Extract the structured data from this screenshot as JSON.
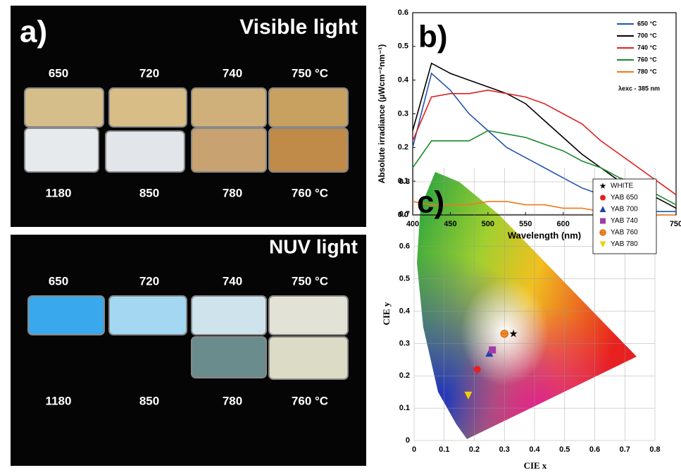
{
  "panel_a": {
    "label": "a)",
    "visible": {
      "title": "Visible light",
      "top_labels": [
        "650",
        "720",
        "740",
        "750 °C"
      ],
      "bottom_labels": [
        "1180",
        "850",
        "780",
        "760 °C"
      ]
    },
    "nuv": {
      "title": "NUV light",
      "top_labels": [
        "650",
        "720",
        "740",
        "750 °C"
      ],
      "bottom_labels": [
        "1180",
        "850",
        "780",
        "760 °C"
      ]
    }
  },
  "chart_data": [
    {
      "type": "line",
      "title": "b)",
      "x_label": "Wavelength (nm)",
      "y_label": "Absolute irradiance (µWcm⁻²nm⁻¹)",
      "annotation": "λexc - 385 nm",
      "x": [
        400,
        425,
        450,
        475,
        500,
        525,
        550,
        575,
        600,
        625,
        650,
        675,
        700,
        725,
        750
      ],
      "xlim": [
        400,
        750
      ],
      "xticks": [
        400,
        450,
        500,
        550,
        600,
        650,
        700,
        750
      ],
      "ylim": [
        0,
        0.6
      ],
      "yticks": [
        {
          "value": 0,
          "label": "0.0"
        },
        0.1,
        0.2,
        0.3,
        0.4,
        0.5,
        0.6
      ],
      "series": [
        {
          "name": "650 °C",
          "color": "#2255b0",
          "values": [
            0.2,
            0.42,
            0.37,
            0.3,
            0.25,
            0.2,
            0.17,
            0.14,
            0.11,
            0.08,
            0.06,
            0.04,
            0.02,
            0.01,
            0.01
          ]
        },
        {
          "name": "700 °C",
          "color": "#000000",
          "values": [
            0.25,
            0.45,
            0.42,
            0.4,
            0.38,
            0.36,
            0.33,
            0.28,
            0.23,
            0.18,
            0.14,
            0.1,
            0.07,
            0.05,
            0.02
          ]
        },
        {
          "name": "740 °C",
          "color": "#e02020",
          "values": [
            0.22,
            0.35,
            0.36,
            0.36,
            0.37,
            0.36,
            0.35,
            0.33,
            0.3,
            0.27,
            0.22,
            0.18,
            0.14,
            0.1,
            0.06
          ]
        },
        {
          "name": "760 °C",
          "color": "#1a8a2a",
          "values": [
            0.14,
            0.22,
            0.22,
            0.22,
            0.25,
            0.24,
            0.23,
            0.21,
            0.19,
            0.16,
            0.14,
            0.11,
            0.09,
            0.06,
            0.03
          ]
        },
        {
          "name": "780 °C",
          "color": "#f07818",
          "values": [
            0.04,
            0.03,
            0.03,
            0.03,
            0.04,
            0.04,
            0.03,
            0.03,
            0.02,
            0.02,
            0.01,
            0.01,
            0.01,
            0,
            0
          ]
        }
      ]
    },
    {
      "type": "scatter",
      "title": "c)",
      "x_label": "CIE x",
      "y_label": "CIE y",
      "xlim": [
        0,
        0.8
      ],
      "xticks": [
        0,
        0.1,
        0.2,
        0.3,
        0.4,
        0.5,
        0.6,
        0.7,
        0.8
      ],
      "ylim": [
        0,
        0.8
      ],
      "yticks": [
        0,
        0.1,
        0.2,
        0.3,
        0.4,
        0.5,
        0.6,
        0.7,
        0.8
      ],
      "series": [
        {
          "name": "WHITE",
          "color": "#000000",
          "marker": "star",
          "x": [
            0.33
          ],
          "y": [
            0.33
          ]
        },
        {
          "name": "YAB 650",
          "color": "#e82020",
          "marker": "circle",
          "x": [
            0.21
          ],
          "y": [
            0.22
          ]
        },
        {
          "name": "YAB 700",
          "color": "#2040b0",
          "marker": "triangle-up",
          "x": [
            0.25
          ],
          "y": [
            0.27
          ]
        },
        {
          "name": "YAB 740",
          "color": "#a03ca8",
          "marker": "square",
          "x": [
            0.26
          ],
          "y": [
            0.28
          ]
        },
        {
          "name": "YAB 760",
          "color": "#f08020",
          "marker": "half-circle",
          "x": [
            0.3
          ],
          "y": [
            0.33
          ]
        },
        {
          "name": "YAB 780",
          "color": "#f0d000",
          "marker": "triangle-down",
          "x": [
            0.18
          ],
          "y": [
            0.14
          ]
        }
      ]
    }
  ]
}
